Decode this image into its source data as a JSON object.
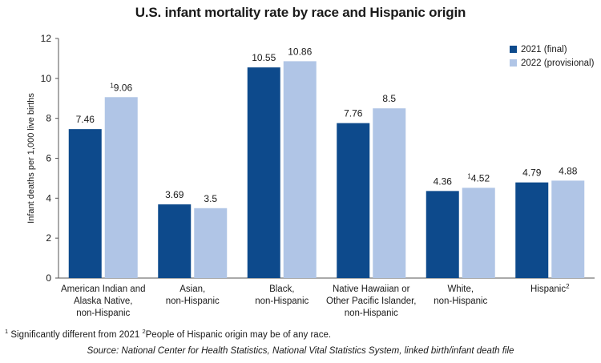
{
  "chart_data": {
    "type": "bar",
    "title": "U.S. infant mortality rate by race and Hispanic origin",
    "ylabel": "Infant deaths per 1,000 live births",
    "xlabel": "",
    "ylim": [
      0,
      12
    ],
    "yticks": [
      0,
      2,
      4,
      6,
      8,
      10,
      12
    ],
    "grid": false,
    "legend_position": "top-right",
    "categories": [
      [
        "American Indian and",
        "Alaska Native,",
        "non-Hispanic"
      ],
      [
        "Asian,",
        "non-Hispanic"
      ],
      [
        "Black,",
        "non-Hispanic"
      ],
      [
        "Native Hawaiian or",
        "Other Pacific Islander,",
        "non-Hispanic"
      ],
      [
        "White,",
        "non-Hispanic"
      ],
      [
        "Hispanic"
      ]
    ],
    "category_superscripts": [
      "",
      "",
      "",
      "",
      "",
      "2"
    ],
    "series": [
      {
        "name": "2021 (final)",
        "color": "#0d4a8c",
        "values": [
          7.46,
          3.69,
          10.55,
          7.76,
          4.36,
          4.79
        ],
        "labels": [
          "7.46",
          "3.69",
          "10.55",
          "7.76",
          "4.36",
          "4.79"
        ],
        "label_superscripts": [
          "",
          "",
          "",
          "",
          "",
          ""
        ]
      },
      {
        "name": "2022 (provisional)",
        "color": "#b0c5e6",
        "values": [
          9.06,
          3.5,
          10.86,
          8.5,
          4.52,
          4.88
        ],
        "labels": [
          "9.06",
          "3.5",
          "10.86",
          "8.5",
          "4.52",
          "4.88"
        ],
        "label_superscripts": [
          "1",
          "",
          "",
          "",
          "1",
          ""
        ]
      }
    ]
  },
  "footnote": {
    "mark1": "1",
    "text1": " Significantly different from 2021 ",
    "mark2": "2",
    "text2": "People of Hispanic origin may be of any race."
  },
  "source": "Source: National Center for Health Statistics, National Vital Statistics System, linked birth/infant death file"
}
